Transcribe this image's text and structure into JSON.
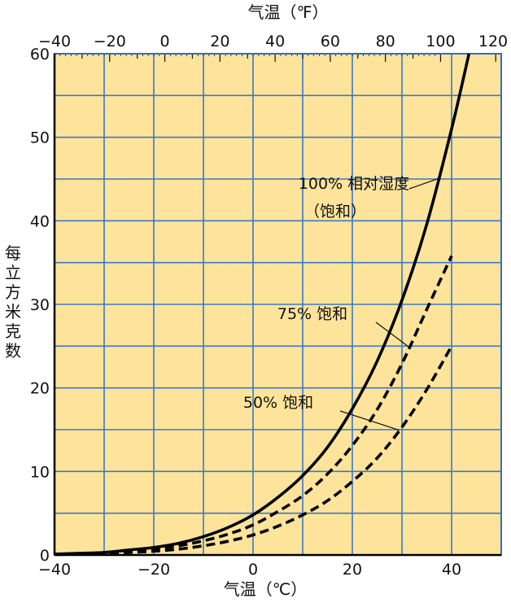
{
  "chart_data": {
    "type": "line",
    "title": "",
    "xlabel": "气温（℃）",
    "xlabel_top": "气温（℉）",
    "ylabel": "每立方米克数",
    "xlim": [
      -40,
      50
    ],
    "ylim": [
      0,
      60
    ],
    "x_ticks": [
      -40,
      -20,
      0,
      20,
      40
    ],
    "x_top_ticks": [
      -40,
      -20,
      0,
      20,
      40,
      60,
      80,
      100,
      120
    ],
    "y_ticks": [
      0,
      10,
      20,
      30,
      40,
      50,
      60
    ],
    "grid": true,
    "colors": {
      "background": "#fde49a",
      "grid": "#3a78c8",
      "line": "#000000"
    },
    "series": [
      {
        "name": "100% 相对湿度（饱和）",
        "style": "solid",
        "x": [
          -40,
          -35,
          -30,
          -25,
          -20,
          -15,
          -10,
          -5,
          0,
          5,
          10,
          15,
          20,
          25,
          30,
          35,
          40,
          43.5
        ],
        "y": [
          0.1,
          0.2,
          0.3,
          0.6,
          0.9,
          1.4,
          2.2,
          3.3,
          4.8,
          6.9,
          9.5,
          12.9,
          17.5,
          23.2,
          30.5,
          39.6,
          51.0,
          60.0
        ]
      },
      {
        "name": "75% 饱和",
        "style": "dashed",
        "x": [
          -40,
          -30,
          -25,
          -20,
          -15,
          -10,
          -5,
          0,
          5,
          10,
          15,
          20,
          25,
          30,
          35,
          40
        ],
        "y": [
          0.1,
          0.2,
          0.4,
          0.7,
          1.1,
          1.7,
          2.5,
          3.6,
          5.2,
          7.1,
          9.7,
          13.1,
          17.4,
          22.9,
          29.4,
          35.8
        ]
      },
      {
        "name": "50% 饱和",
        "style": "dashed",
        "x": [
          -40,
          -30,
          -25,
          -20,
          -15,
          -10,
          -5,
          0,
          5,
          10,
          15,
          20,
          25,
          30,
          35,
          40
        ],
        "y": [
          0.05,
          0.15,
          0.3,
          0.45,
          0.7,
          1.1,
          1.65,
          2.4,
          3.45,
          4.8,
          6.5,
          8.8,
          11.6,
          15.3,
          19.8,
          25.0
        ]
      }
    ],
    "annotations": [
      {
        "text": "100% 相对湿度",
        "line2": "（饱和）",
        "series": 0
      },
      {
        "text": "75% 饱和",
        "series": 1
      },
      {
        "text": "50% 饱和",
        "series": 2
      }
    ]
  }
}
